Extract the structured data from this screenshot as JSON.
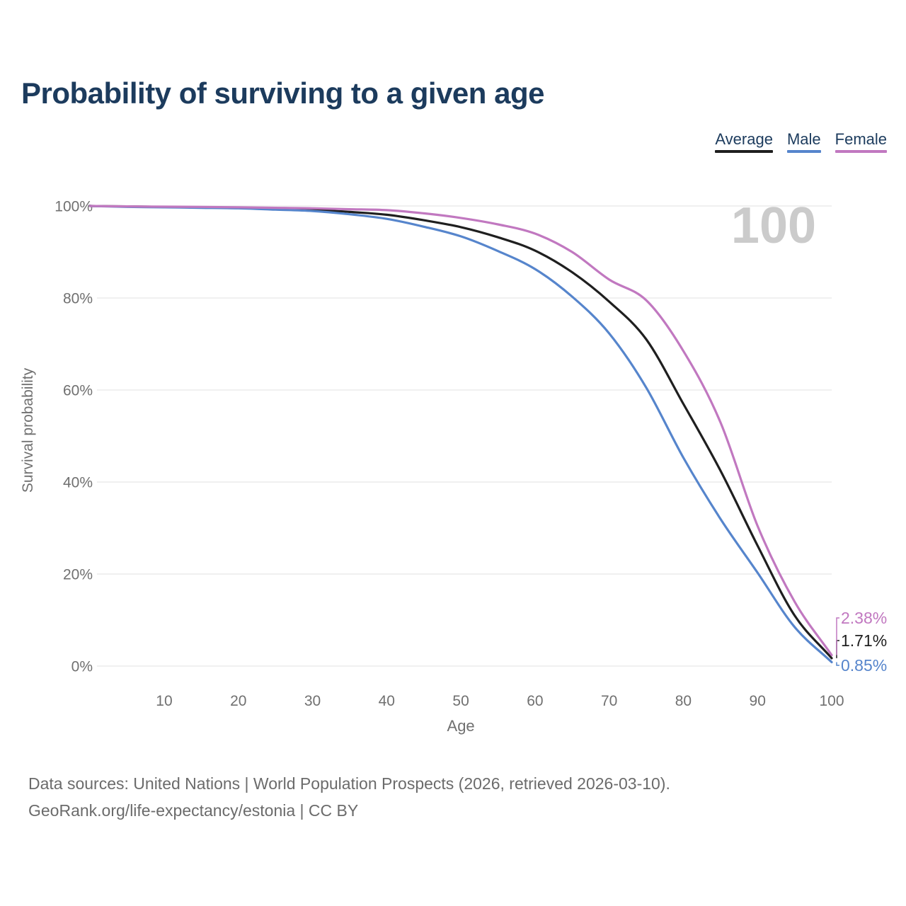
{
  "chart_data": {
    "type": "line",
    "title": "Probability of surviving to a given age",
    "xlabel": "Age",
    "ylabel": "Survival probability",
    "xlim": [
      0,
      100
    ],
    "ylim": [
      0,
      100
    ],
    "grid": "horizontal",
    "legend_position": "top-right",
    "watermark": "100",
    "xticks": [
      10,
      20,
      30,
      40,
      50,
      60,
      70,
      80,
      90,
      100
    ],
    "yticks": [
      {
        "value": 0,
        "label": "0%"
      },
      {
        "value": 20,
        "label": "20%"
      },
      {
        "value": 40,
        "label": "40%"
      },
      {
        "value": 60,
        "label": "60%"
      },
      {
        "value": 80,
        "label": "80%"
      },
      {
        "value": 100,
        "label": "100%"
      }
    ],
    "x": [
      0,
      5,
      10,
      15,
      20,
      25,
      30,
      35,
      40,
      45,
      50,
      55,
      60,
      65,
      70,
      75,
      80,
      85,
      90,
      95,
      100
    ],
    "series": [
      {
        "name": "Average",
        "color": "#1f1f1f",
        "end_label": "1.71%",
        "values": [
          100,
          99.9,
          99.8,
          99.7,
          99.6,
          99.4,
          99.2,
          98.7,
          98.1,
          96.9,
          95.4,
          93.2,
          90.3,
          85.6,
          79.2,
          71.0,
          57.0,
          42.5,
          26.2,
          11.0,
          1.71
        ]
      },
      {
        "name": "Male",
        "color": "#5685cc",
        "end_label": "0.85%",
        "values": [
          100,
          99.8,
          99.7,
          99.6,
          99.5,
          99.2,
          98.9,
          98.2,
          97.2,
          95.5,
          93.4,
          90.2,
          86.3,
          80.3,
          72.3,
          60.5,
          45.3,
          32.0,
          20.3,
          8.5,
          0.85
        ]
      },
      {
        "name": "Female",
        "color": "#c178c0",
        "end_label": "2.38%",
        "values": [
          100,
          99.9,
          99.85,
          99.8,
          99.7,
          99.6,
          99.5,
          99.3,
          99.1,
          98.4,
          97.4,
          96.0,
          94.0,
          90.0,
          84.0,
          79.5,
          68.5,
          53.0,
          30.5,
          14.0,
          2.38
        ]
      }
    ]
  },
  "footer": {
    "line1": "Data sources: United Nations | World Population Prospects (2026, retrieved 2026-03-10).",
    "line2": "GeoRank.org/life-expectancy/estonia | CC BY"
  }
}
